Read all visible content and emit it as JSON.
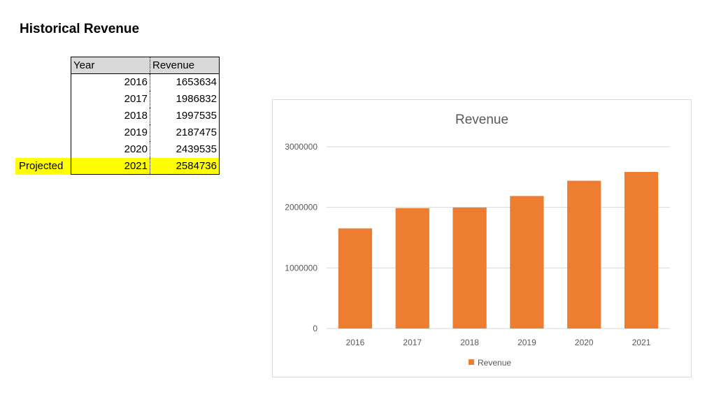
{
  "page": {
    "title": "Historical Revenue",
    "projected_label": "Projected"
  },
  "table": {
    "headers": [
      "Year",
      "Revenue"
    ],
    "rows": [
      {
        "year": "2016",
        "revenue": "1653634"
      },
      {
        "year": "2017",
        "revenue": "1986832"
      },
      {
        "year": "2018",
        "revenue": "1997535"
      },
      {
        "year": "2019",
        "revenue": "2187475"
      },
      {
        "year": "2020",
        "revenue": "2439535"
      },
      {
        "year": "2021",
        "revenue": "2584736"
      }
    ]
  },
  "colors": {
    "bar": "#ed7d31",
    "highlight": "#ffff00",
    "gridline": "#d9d9d9",
    "header_fill": "#d9d9d9",
    "text_muted": "#595959"
  },
  "chart_data": {
    "type": "bar",
    "title": "Revenue",
    "categories": [
      "2016",
      "2017",
      "2018",
      "2019",
      "2020",
      "2021"
    ],
    "series": [
      {
        "name": "Revenue",
        "values": [
          1653634,
          1986832,
          1997535,
          2187475,
          2439535,
          2584736
        ]
      }
    ],
    "xlabel": "",
    "ylabel": "",
    "ylim": [
      0,
      3000000
    ],
    "yticks": [
      "0",
      "1000000",
      "2000000",
      "3000000"
    ],
    "grid": true,
    "legend_position": "bottom"
  }
}
